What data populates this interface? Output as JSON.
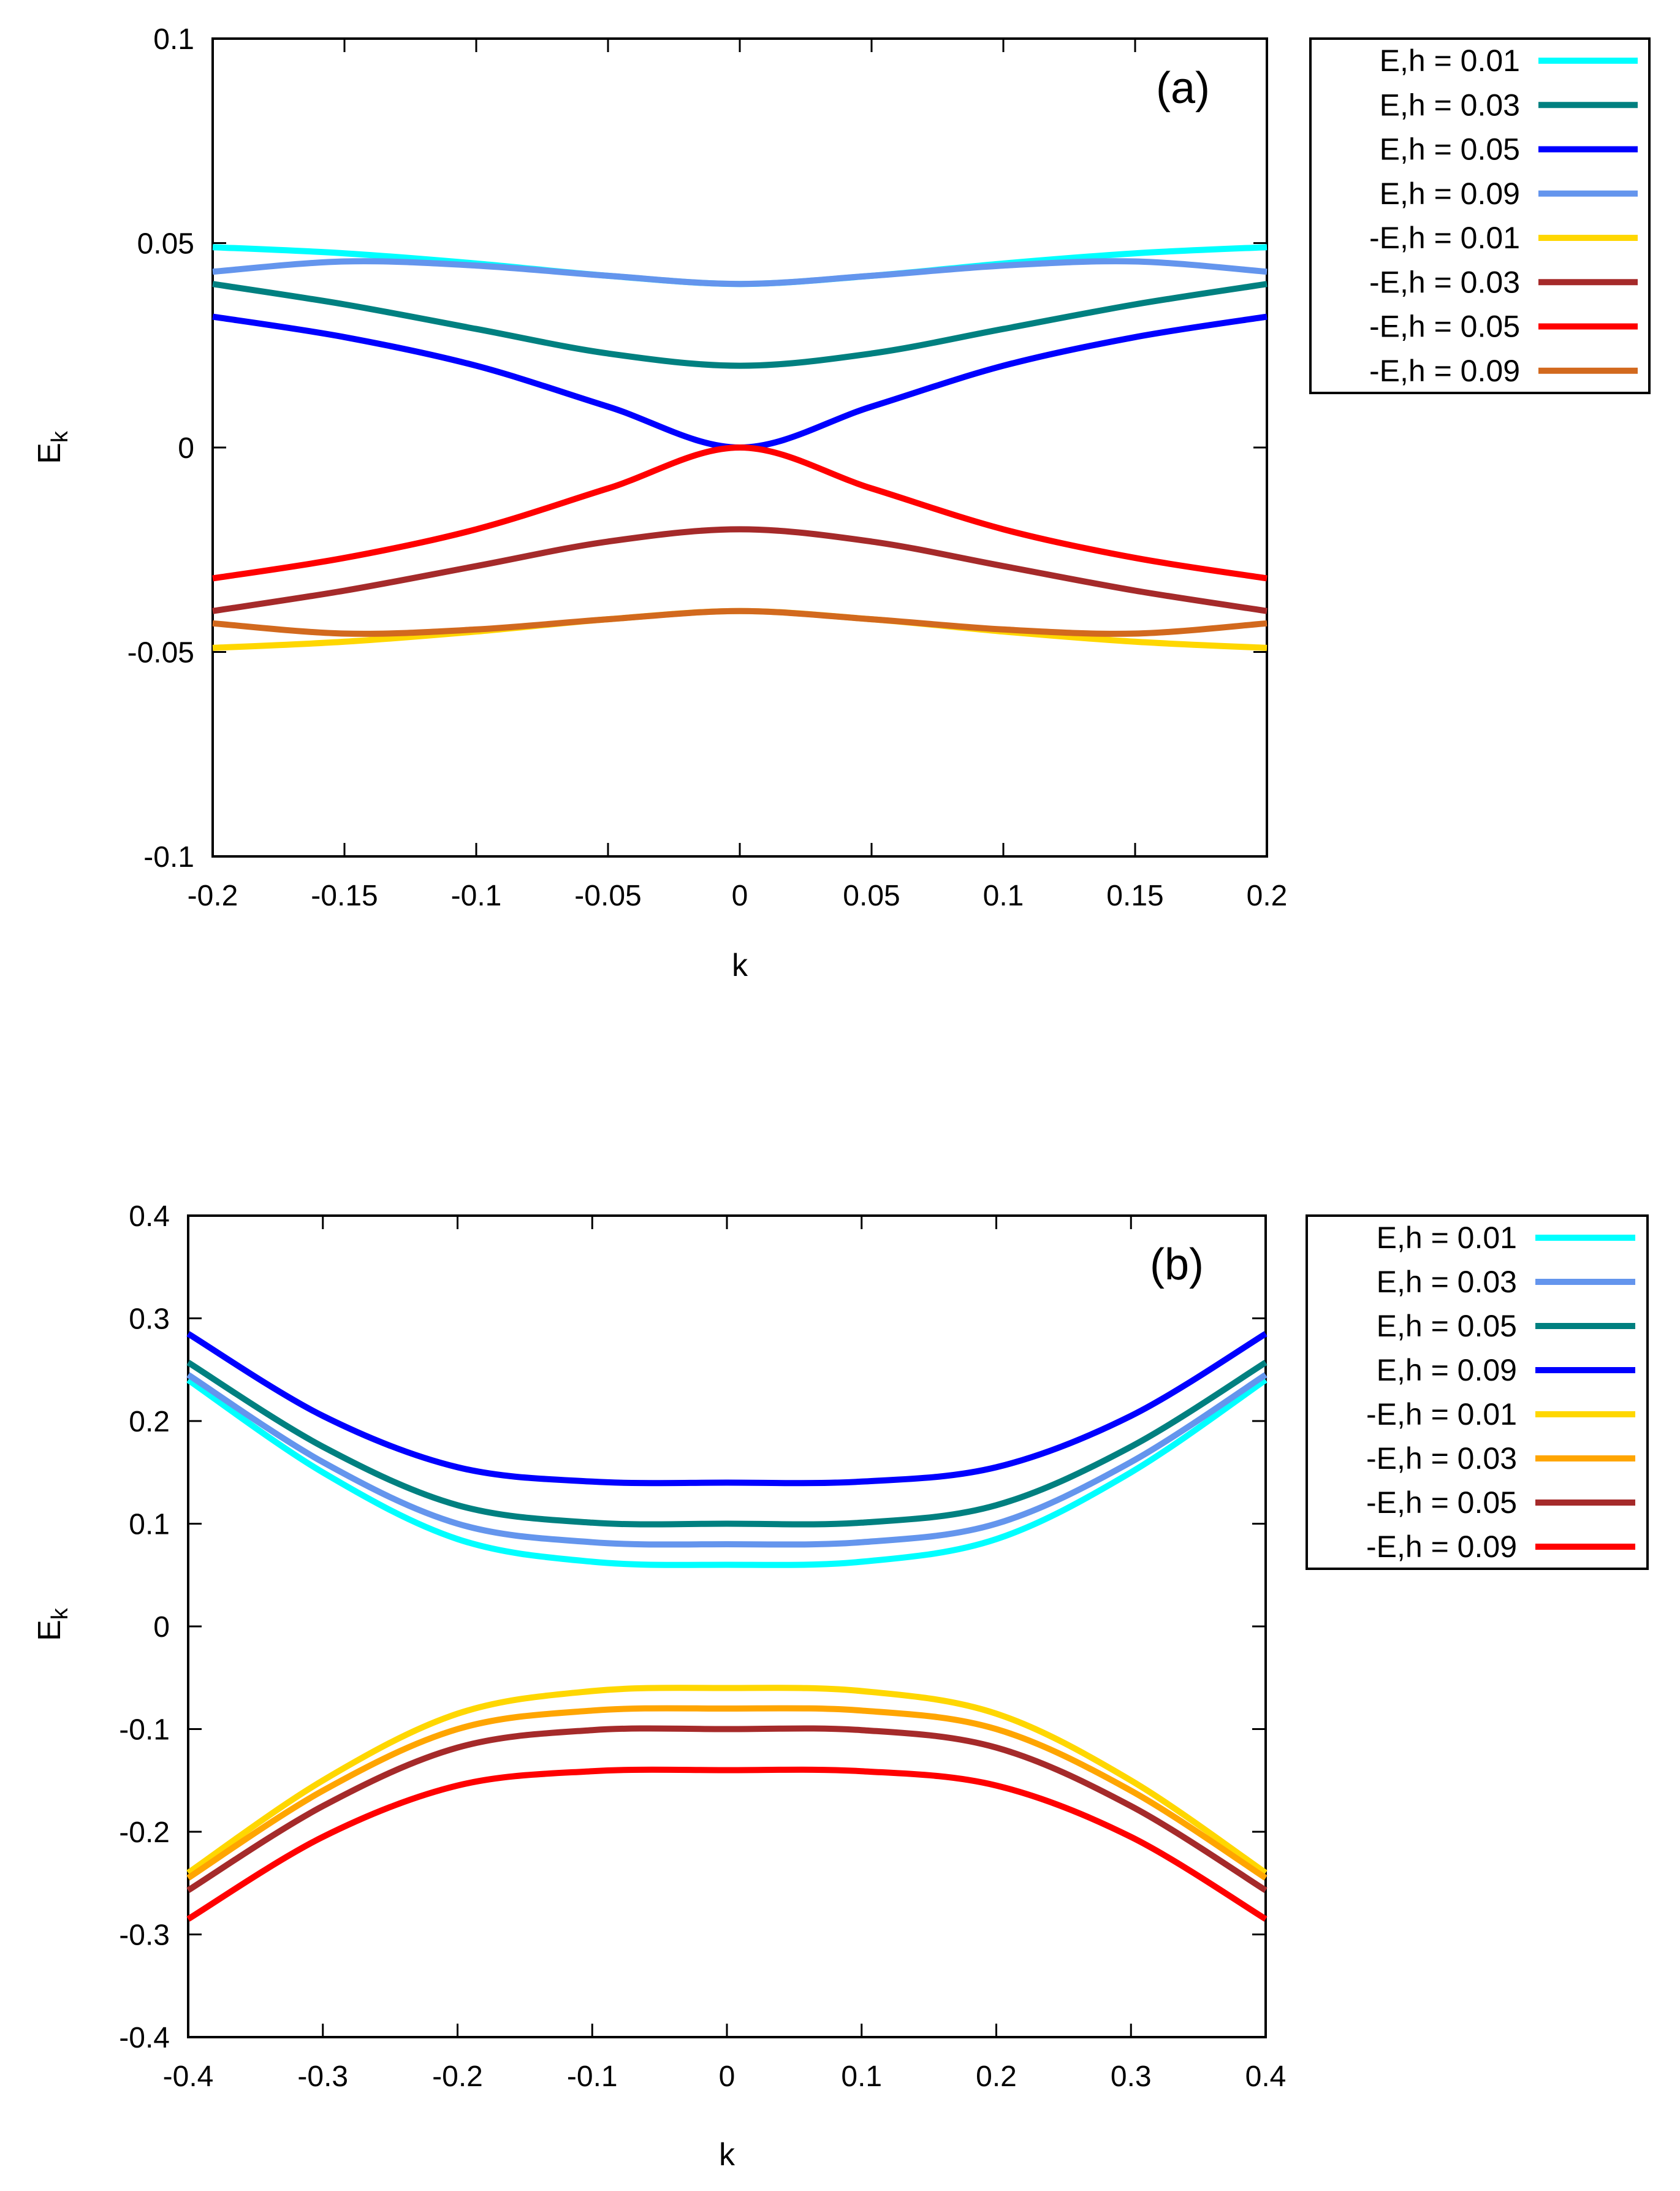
{
  "chart_data": [
    {
      "type": "line",
      "panel_label": "(a)",
      "xlabel": "k",
      "ylabel": "E",
      "ylabel_sub": "k",
      "xlim": [
        -0.2,
        0.2
      ],
      "ylim": [
        -0.1,
        0.1
      ],
      "xticks": [
        "-0.2",
        "-0.15",
        "-0.1",
        "-0.05",
        "0",
        "0.05",
        "0.1",
        "0.15",
        "0.2"
      ],
      "xtick_values": [
        -0.2,
        -0.15,
        -0.1,
        -0.05,
        0,
        0.05,
        0.1,
        0.15,
        0.2
      ],
      "yticks": [
        "0.1",
        "0.05",
        "0",
        "-0.05",
        "-0.1"
      ],
      "ytick_values": [
        0.1,
        0.05,
        0,
        -0.05,
        -0.1
      ],
      "legend_position": "outside-right-top",
      "series": [
        {
          "name": "E,h = 0.01",
          "color": "#00ffff",
          "x": [
            -0.2,
            -0.15,
            -0.1,
            -0.05,
            0,
            0.05,
            0.1,
            0.15,
            0.2
          ],
          "y": [
            0.049,
            0.0475,
            0.045,
            0.042,
            0.04,
            0.042,
            0.045,
            0.0475,
            0.049
          ]
        },
        {
          "name": "E,h = 0.03",
          "color": "#008080",
          "x": [
            -0.2,
            -0.15,
            -0.1,
            -0.05,
            0,
            0.05,
            0.1,
            0.15,
            0.2
          ],
          "y": [
            0.04,
            0.035,
            0.029,
            0.023,
            0.02,
            0.023,
            0.029,
            0.035,
            0.04
          ]
        },
        {
          "name": "E,h = 0.05",
          "color": "#0000ff",
          "x": [
            -0.2,
            -0.15,
            -0.1,
            -0.05,
            0,
            0.05,
            0.1,
            0.15,
            0.2
          ],
          "y": [
            0.032,
            0.027,
            0.02,
            0.01,
            0.0,
            0.01,
            0.02,
            0.027,
            0.032
          ]
        },
        {
          "name": "E,h = 0.09",
          "color": "#6495ed",
          "x": [
            -0.2,
            -0.15,
            -0.1,
            -0.05,
            0,
            0.05,
            0.1,
            0.15,
            0.2
          ],
          "y": [
            0.043,
            0.0455,
            0.0445,
            0.042,
            0.04,
            0.042,
            0.0445,
            0.0455,
            0.043
          ]
        },
        {
          "name": "-E,h = 0.01",
          "color": "#ffd700",
          "x": [
            -0.2,
            -0.15,
            -0.1,
            -0.05,
            0,
            0.05,
            0.1,
            0.15,
            0.2
          ],
          "y": [
            -0.049,
            -0.0475,
            -0.045,
            -0.042,
            -0.04,
            -0.042,
            -0.045,
            -0.0475,
            -0.049
          ]
        },
        {
          "name": "-E,h = 0.03",
          "color": "#a52a2a",
          "x": [
            -0.2,
            -0.15,
            -0.1,
            -0.05,
            0,
            0.05,
            0.1,
            0.15,
            0.2
          ],
          "y": [
            -0.04,
            -0.035,
            -0.029,
            -0.023,
            -0.02,
            -0.023,
            -0.029,
            -0.035,
            -0.04
          ]
        },
        {
          "name": "-E,h = 0.05",
          "color": "#ff0000",
          "x": [
            -0.2,
            -0.15,
            -0.1,
            -0.05,
            0,
            0.05,
            0.1,
            0.15,
            0.2
          ],
          "y": [
            -0.032,
            -0.027,
            -0.02,
            -0.01,
            0.0,
            -0.01,
            -0.02,
            -0.027,
            -0.032
          ]
        },
        {
          "name": "-E,h = 0.09",
          "color": "#d2691e",
          "x": [
            -0.2,
            -0.15,
            -0.1,
            -0.05,
            0,
            0.05,
            0.1,
            0.15,
            0.2
          ],
          "y": [
            -0.043,
            -0.0455,
            -0.0445,
            -0.042,
            -0.04,
            -0.042,
            -0.0445,
            -0.0455,
            -0.043
          ]
        }
      ]
    },
    {
      "type": "line",
      "panel_label": "(b)",
      "xlabel": "k",
      "ylabel": "E",
      "ylabel_sub": "k",
      "xlim": [
        -0.4,
        0.4
      ],
      "ylim": [
        -0.4,
        0.4
      ],
      "xticks": [
        "-0.4",
        "-0.3",
        "-0.2",
        "-0.1",
        "0",
        "0.1",
        "0.2",
        "0.3",
        "0.4"
      ],
      "xtick_values": [
        -0.4,
        -0.3,
        -0.2,
        -0.1,
        0,
        0.1,
        0.2,
        0.3,
        0.4
      ],
      "yticks": [
        "0.4",
        "0.3",
        "0.2",
        "0.1",
        "0",
        "-0.1",
        "-0.2",
        "-0.3",
        "-0.4"
      ],
      "ytick_values": [
        0.4,
        0.3,
        0.2,
        0.1,
        0,
        -0.1,
        -0.2,
        -0.3,
        -0.4
      ],
      "legend_position": "outside-right-top",
      "series": [
        {
          "name": "E,h = 0.01",
          "color": "#00ffff",
          "x": [
            -0.4,
            -0.3,
            -0.2,
            -0.1,
            0,
            0.1,
            0.2,
            0.3,
            0.4
          ],
          "y": [
            0.24,
            0.15,
            0.085,
            0.063,
            0.06,
            0.063,
            0.085,
            0.15,
            0.24
          ]
        },
        {
          "name": "E,h = 0.03",
          "color": "#6495ed",
          "x": [
            -0.4,
            -0.3,
            -0.2,
            -0.1,
            0,
            0.1,
            0.2,
            0.3,
            0.4
          ],
          "y": [
            0.245,
            0.16,
            0.1,
            0.082,
            0.08,
            0.082,
            0.1,
            0.16,
            0.245
          ]
        },
        {
          "name": "E,h = 0.05",
          "color": "#008080",
          "x": [
            -0.4,
            -0.3,
            -0.2,
            -0.1,
            0,
            0.1,
            0.2,
            0.3,
            0.4
          ],
          "y": [
            0.257,
            0.175,
            0.118,
            0.101,
            0.1,
            0.101,
            0.118,
            0.175,
            0.257
          ]
        },
        {
          "name": "E,h = 0.09",
          "color": "#0000ff",
          "x": [
            -0.4,
            -0.3,
            -0.2,
            -0.1,
            0,
            0.1,
            0.2,
            0.3,
            0.4
          ],
          "y": [
            0.285,
            0.205,
            0.155,
            0.141,
            0.14,
            0.141,
            0.155,
            0.205,
            0.285
          ]
        },
        {
          "name": "-E,h = 0.01",
          "color": "#ffd700",
          "x": [
            -0.4,
            -0.3,
            -0.2,
            -0.1,
            0,
            0.1,
            0.2,
            0.3,
            0.4
          ],
          "y": [
            -0.24,
            -0.15,
            -0.085,
            -0.063,
            -0.06,
            -0.063,
            -0.085,
            -0.15,
            -0.24
          ]
        },
        {
          "name": "-E,h = 0.03",
          "color": "#ffa500",
          "x": [
            -0.4,
            -0.3,
            -0.2,
            -0.1,
            0,
            0.1,
            0.2,
            0.3,
            0.4
          ],
          "y": [
            -0.245,
            -0.16,
            -0.1,
            -0.082,
            -0.08,
            -0.082,
            -0.1,
            -0.16,
            -0.245
          ]
        },
        {
          "name": "-E,h = 0.05",
          "color": "#a52a2a",
          "x": [
            -0.4,
            -0.3,
            -0.2,
            -0.1,
            0,
            0.1,
            0.2,
            0.3,
            0.4
          ],
          "y": [
            -0.257,
            -0.175,
            -0.118,
            -0.101,
            -0.1,
            -0.101,
            -0.118,
            -0.175,
            -0.257
          ]
        },
        {
          "name": "-E,h = 0.09",
          "color": "#ff0000",
          "x": [
            -0.4,
            -0.3,
            -0.2,
            -0.1,
            0,
            0.1,
            0.2,
            0.3,
            0.4
          ],
          "y": [
            -0.285,
            -0.205,
            -0.155,
            -0.141,
            -0.14,
            -0.141,
            -0.155,
            -0.205,
            -0.285
          ]
        }
      ]
    }
  ]
}
